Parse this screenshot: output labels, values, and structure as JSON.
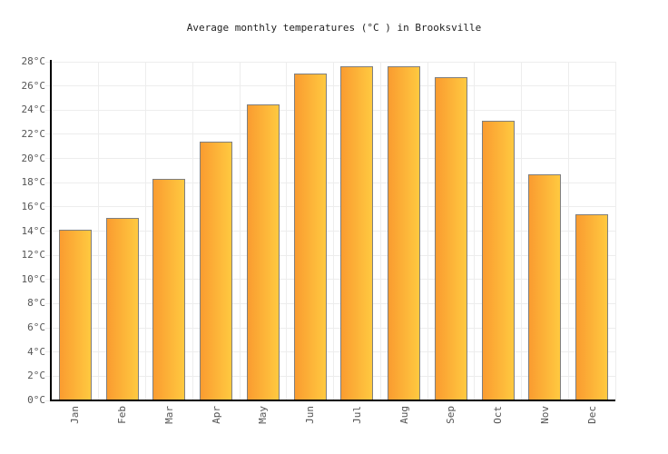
{
  "title": "Average monthly temperatures (°C ) in Brooksville",
  "chart_data": {
    "type": "bar",
    "title": "Average monthly temperatures (°C ) in Brooksville",
    "categories": [
      "Jan",
      "Feb",
      "Mar",
      "Apr",
      "May",
      "Jun",
      "Jul",
      "Aug",
      "Sep",
      "Oct",
      "Nov",
      "Dec"
    ],
    "values": [
      14.1,
      15.1,
      18.3,
      21.4,
      24.5,
      27.0,
      27.6,
      27.6,
      26.7,
      23.1,
      18.7,
      15.4
    ],
    "xlabel": "",
    "ylabel": "",
    "ylim": [
      0,
      28
    ],
    "ytick_step": 2,
    "ytick_suffix": "°C",
    "grid": true,
    "legend": "none",
    "x_label_rotation": -90
  },
  "colors": {
    "background": "#FFFFFF",
    "bar_gradient_start": "#FA9C30",
    "bar_gradient_end": "#FFC940",
    "bar_border": "#7F7F7F",
    "gridline": "#EDEDED",
    "axis": "#000000",
    "tick_label": "#555555",
    "title_color": "#222222"
  }
}
